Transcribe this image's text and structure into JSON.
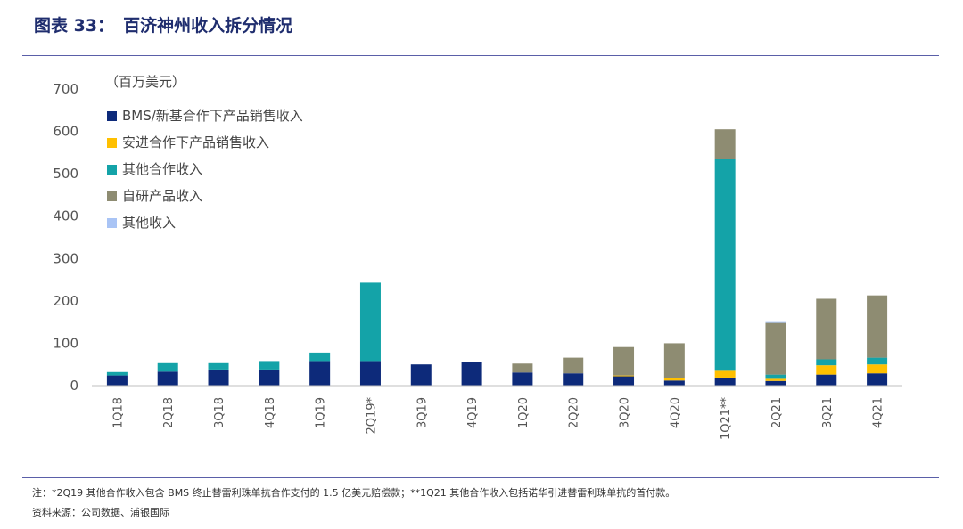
{
  "header": {
    "figure_label": "图表 33：",
    "title": "百济神州收入拆分情况"
  },
  "footer": {
    "note": "注：*2Q19 其他合作收入包含 BMS 终止替雷利珠单抗合作支付的 1.5 亿美元赔偿款；**1Q21 其他合作收入包括诺华引进替雷利珠单抗的首付款。",
    "source": "资料来源：公司数据、浦银国际"
  },
  "chart_data": {
    "type": "bar",
    "stacked": true,
    "unit": "（百万美元）",
    "categories": [
      "1Q18",
      "2Q18",
      "3Q18",
      "4Q18",
      "1Q19",
      "2Q19*",
      "3Q19",
      "4Q19",
      "1Q20",
      "2Q20",
      "3Q20",
      "4Q20",
      "1Q21**",
      "2Q21",
      "3Q21",
      "4Q21"
    ],
    "ylim": [
      0,
      700
    ],
    "yticks": [
      0,
      100,
      200,
      300,
      400,
      500,
      600,
      700
    ],
    "grid": false,
    "legend_position": "top-left",
    "series": [
      {
        "name": "BMS/新基合作下产品销售收入",
        "color": "#0d2a7a",
        "values": [
          24,
          33,
          38,
          38,
          58,
          58,
          50,
          56,
          31,
          29,
          22,
          12,
          19,
          11,
          26,
          29
        ]
      },
      {
        "name": "安进合作下产品销售收入",
        "color": "#ffc000",
        "values": [
          0,
          0,
          0,
          0,
          0,
          0,
          0,
          0,
          0,
          0,
          2,
          6,
          16,
          5,
          22,
          21
        ]
      },
      {
        "name": "其他合作收入",
        "color": "#14a3a8",
        "values": [
          8,
          20,
          15,
          20,
          20,
          185,
          0,
          0,
          0,
          0,
          0,
          0,
          500,
          10,
          14,
          16
        ]
      },
      {
        "name": "自研产品收入",
        "color": "#8e8c72",
        "values": [
          0,
          0,
          0,
          0,
          0,
          0,
          0,
          0,
          21,
          37,
          67,
          82,
          70,
          122,
          143,
          147
        ]
      },
      {
        "name": "其他收入",
        "color": "#a9c4f5",
        "values": [
          0,
          0,
          0,
          0,
          0,
          0,
          0,
          0,
          0,
          0,
          0,
          0,
          0,
          2,
          0,
          0
        ]
      }
    ]
  }
}
